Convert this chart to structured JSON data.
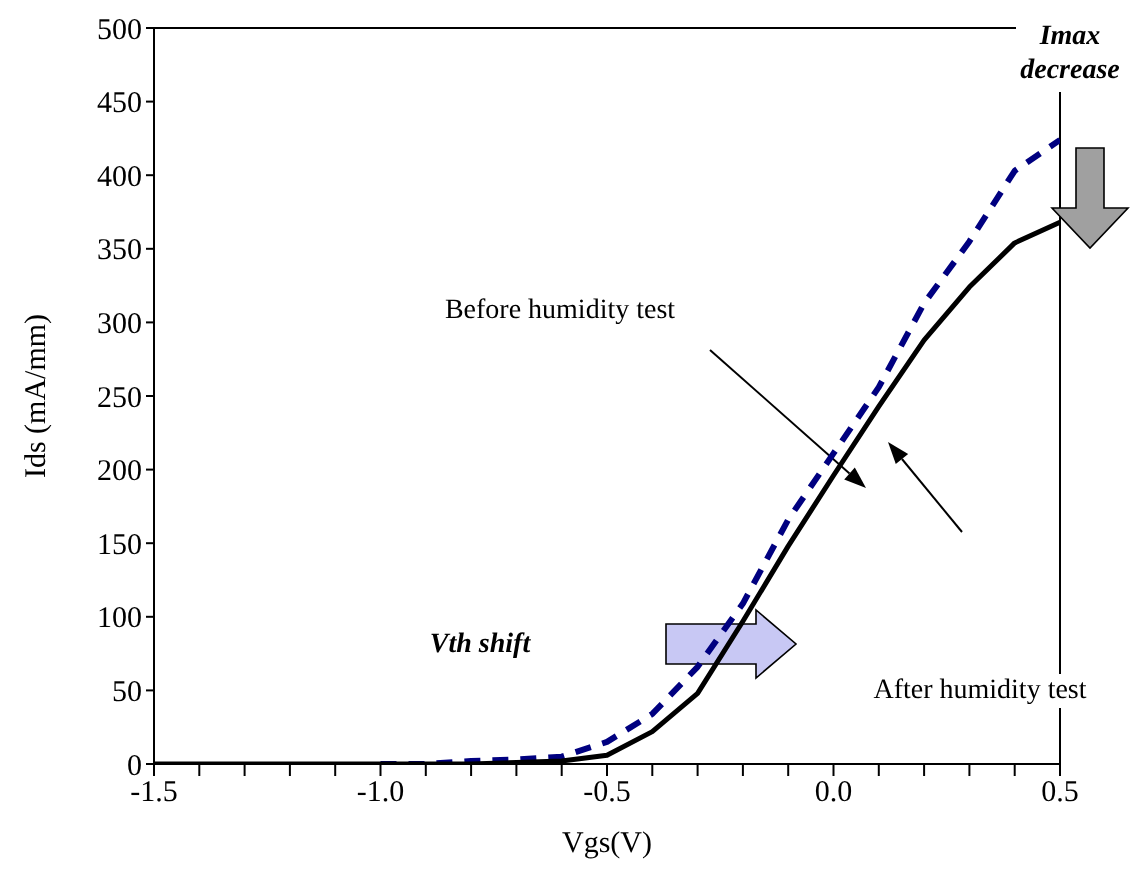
{
  "chart_data": {
    "type": "line",
    "xlabel": "Vgs(V)",
    "ylabel": "Ids (mA/mm)",
    "x": [
      -1.5,
      -1.4,
      -1.3,
      -1.2,
      -1.1,
      -1.0,
      -0.9,
      -0.8,
      -0.7,
      -0.6,
      -0.5,
      -0.4,
      -0.3,
      -0.2,
      -0.1,
      0.0,
      0.1,
      0.2,
      0.3,
      0.4,
      0.5
    ],
    "series": [
      {
        "name": null,
        "color": "#000080",
        "line_style": "dashed",
        "values": [
          null,
          null,
          null,
          null,
          null,
          0,
          0,
          2,
          3,
          5,
          15,
          34,
          66,
          109,
          166,
          211,
          256,
          313,
          355,
          403,
          424
        ]
      },
      {
        "name": null,
        "color": "#000000",
        "line_style": "solid",
        "values": [
          0,
          0,
          0,
          0,
          0,
          0,
          0,
          0,
          1,
          2,
          6,
          22,
          48,
          97,
          148,
          196,
          243,
          288,
          324,
          354,
          368
        ]
      }
    ],
    "xlim": [
      -1.5,
      0.5
    ],
    "xticks": [
      {
        "value": -1.5,
        "label": "-1.5"
      },
      {
        "value": -1.4,
        "label": null
      },
      {
        "value": -1.3,
        "label": null
      },
      {
        "value": -1.2,
        "label": null
      },
      {
        "value": -1.1,
        "label": null
      },
      {
        "value": -1.0,
        "label": "-1.0"
      },
      {
        "value": -0.9,
        "label": null
      },
      {
        "value": -0.8,
        "label": null
      },
      {
        "value": -0.7,
        "label": null
      },
      {
        "value": -0.6,
        "label": null
      },
      {
        "value": -0.5,
        "label": "-0.5"
      },
      {
        "value": -0.4,
        "label": null
      },
      {
        "value": -0.3,
        "label": null
      },
      {
        "value": -0.2,
        "label": null
      },
      {
        "value": -0.1,
        "label": null
      },
      {
        "value": 0.0,
        "label": "0.0"
      },
      {
        "value": 0.1,
        "label": null
      },
      {
        "value": 0.2,
        "label": null
      },
      {
        "value": 0.3,
        "label": null
      },
      {
        "value": 0.4,
        "label": null
      },
      {
        "value": 0.5,
        "label": "0.5"
      }
    ],
    "ylim": [
      0,
      500
    ],
    "yticks": [
      0,
      50,
      100,
      150,
      200,
      250,
      300,
      350,
      400,
      450,
      500
    ],
    "marker": "none",
    "annotations": [
      "Before humidity test",
      "After humidity test",
      "Vth shift",
      "Imax decrease"
    ]
  }
}
